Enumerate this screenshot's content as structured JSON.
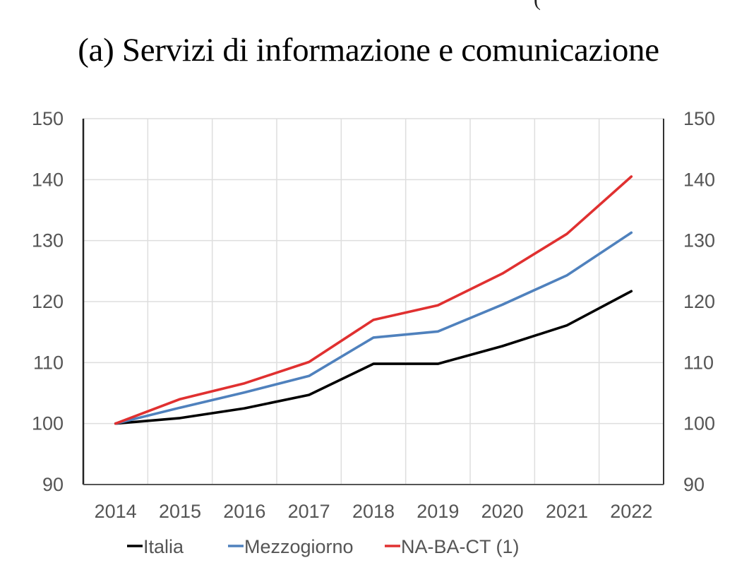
{
  "header": {
    "title": "(a) Servizi di informazione e comunicazione",
    "top_fragment": "("
  },
  "chart_data": {
    "type": "line",
    "title": "(a) Servizi di informazione e comunicazione",
    "xlabel": "",
    "ylabel": "",
    "x": [
      "2014",
      "2015",
      "2016",
      "2017",
      "2018",
      "2019",
      "2020",
      "2021",
      "2022"
    ],
    "ylim": [
      90,
      150
    ],
    "yticks": [
      "90",
      "100",
      "110",
      "120",
      "130",
      "140",
      "150"
    ],
    "ytick_values": [
      90,
      100,
      110,
      120,
      130,
      140,
      150
    ],
    "secondary_yaxis": true,
    "grid": true,
    "legend_position": "bottom",
    "series": [
      {
        "name": "Italia",
        "color": "#000000",
        "values": [
          100,
          100.9,
          102.5,
          104.7,
          109.8,
          109.8,
          112.7,
          116.1,
          121.7
        ]
      },
      {
        "name": "Mezzogiorno",
        "color": "#4f81bd",
        "values": [
          100,
          102.6,
          105.1,
          107.8,
          114.1,
          115.1,
          119.5,
          124.3,
          131.3
        ]
      },
      {
        "name": "NA-BA-CT (1)",
        "color": "#e03030",
        "values": [
          100,
          104.0,
          106.6,
          110.1,
          117.0,
          119.4,
          124.6,
          131.1,
          140.5
        ]
      }
    ]
  }
}
